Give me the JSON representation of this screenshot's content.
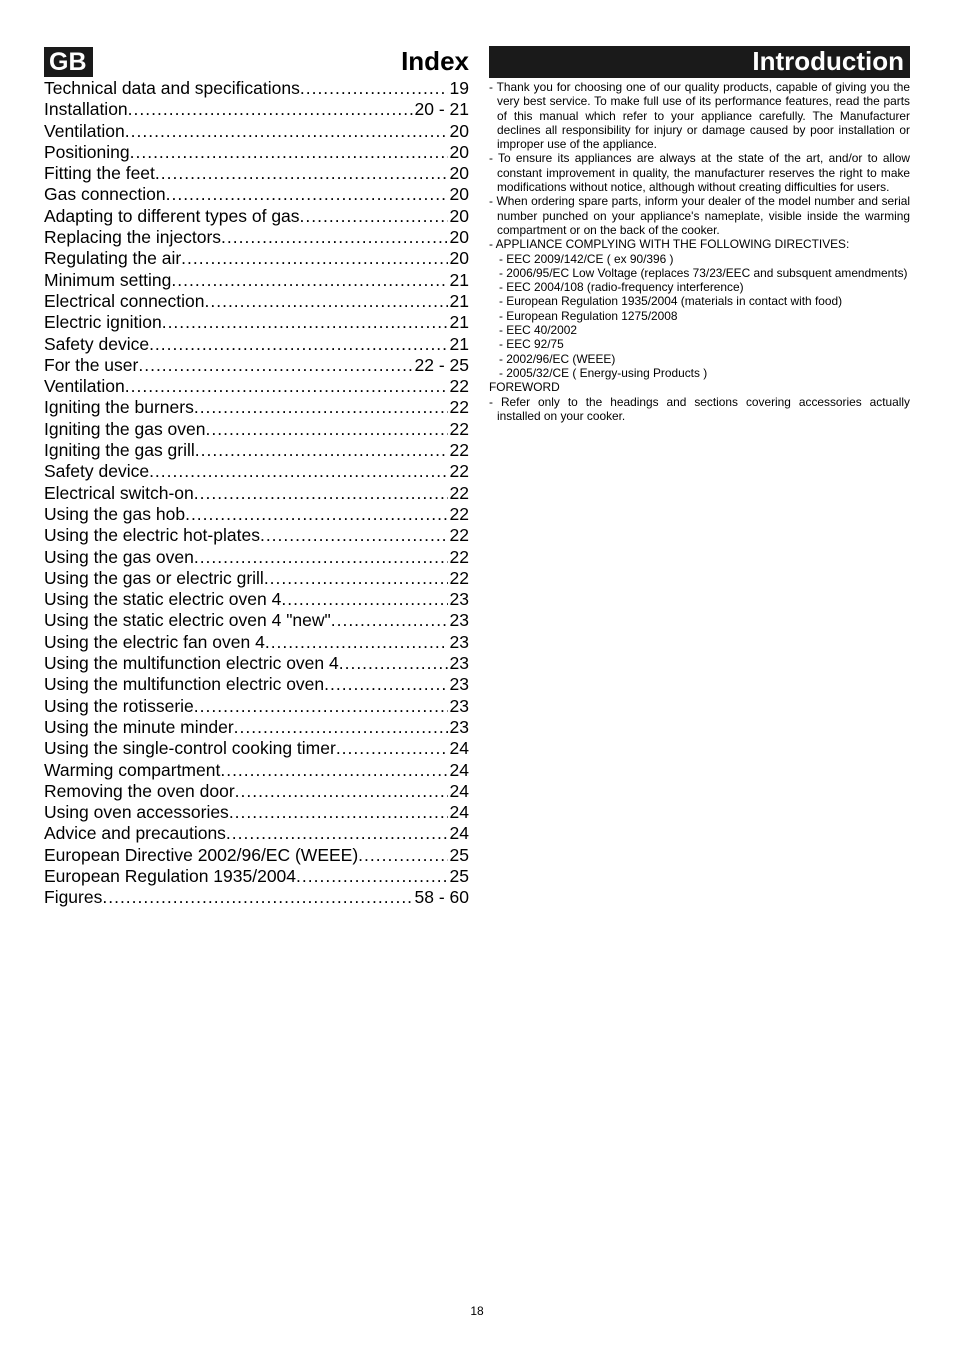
{
  "pageNumber": "18",
  "left": {
    "headerChip": "GB",
    "headerTitle": "Index",
    "toc": [
      {
        "label": "Technical data and  specifications",
        "page": "19"
      },
      {
        "label": "Installation",
        "page": "20 - 21"
      },
      {
        "label": "Ventilation ",
        "page": "20"
      },
      {
        "label": "Positioning",
        "page": "20"
      },
      {
        "label": "Fitting the feet",
        "page": "20"
      },
      {
        "label": "Gas connection",
        "page": "20"
      },
      {
        "label": "Adapting to different types  of gas",
        "page": "20"
      },
      {
        "label": "Replacing the injectors",
        "page": "20"
      },
      {
        "label": "Regulating the air",
        "page": "20"
      },
      {
        "label": "Minimum setting",
        "page": "21"
      },
      {
        "label": "Electrical connection",
        "page": "21"
      },
      {
        "label": "Electric ignition",
        "page": "21"
      },
      {
        "label": "Safety device",
        "page": "21"
      },
      {
        "label": "For the user",
        "page": "22 - 25"
      },
      {
        "label": "Ventilation",
        "page": "22"
      },
      {
        "label": "Igniting the burners",
        "page": " 22"
      },
      {
        "label": "Igniting the gas oven",
        "page": " 22"
      },
      {
        "label": "Igniting the gas grill",
        "page": "22"
      },
      {
        "label": "Safety device",
        "page": "22"
      },
      {
        "label": "Electrical switch-on",
        "page": "22"
      },
      {
        "label": "Using the gas hob",
        "page": "22"
      },
      {
        "label": "Using the electric hot-plates",
        "page": "22"
      },
      {
        "label": "Using the gas oven",
        "page": "22"
      },
      {
        "label": "Using the gas or electric grill",
        "page": "22"
      },
      {
        "label": "Using the static electric oven 4",
        "page": "23"
      },
      {
        "label": "Using the static electric oven 4 \"new\"",
        "page": "23"
      },
      {
        "label": "Using the electric fan oven 4",
        "page": "23"
      },
      {
        "label": "Using the multifunction electric oven 4",
        "page": "23"
      },
      {
        "label": "Using the multifunction  electric oven",
        "page": "23"
      },
      {
        "label": "Using the rotisserie",
        "page": "23"
      },
      {
        "label": "Using the minute minder",
        "page": "23"
      },
      {
        "label": "Using the single-control cooking timer",
        "page": "24"
      },
      {
        "label": "Warming compartment",
        "page": "24"
      },
      {
        "label": "Removing the oven door",
        "page": "24"
      },
      {
        "label": "Using oven accessories",
        "page": "24"
      },
      {
        "label": "Advice and precautions",
        "page": "24"
      },
      {
        "label": "European Directive 2002/96/EC (WEEE)",
        "page": "25"
      },
      {
        "label": "European Regulation 1935/2004",
        "page": "25"
      },
      {
        "label": "Figures",
        "page": "58 - 60"
      }
    ]
  },
  "right": {
    "headerTitle": "Introduction",
    "para1": "- Thank you for choosing one of our quality products, capable of giving you the very best service.  To make full use of its performance features, read the parts of this manual which refer to your appliance carefully.  The Manufacturer declines all responsibility for injury or damage caused by poor installation or improper use of the appliance.",
    "para2": "- To ensure its appliances are always at the state of the art, and/or to allow constant improvement in quality, the manufacturer reserves the right to make modifications without notice, although without creating difficulties for users.",
    "para3": "- When ordering spare parts, inform your dealer of the model number and serial number punched on your appliance's nameplate, visible inside the warming compartment or on the back of the cooker.",
    "complyHead": "- APPLIANCE COMPLYING WITH THE FOLLOWING DIRECTIVES:",
    "directives": [
      "- EEC 2009/142/CE  ( ex 90/396 )",
      "- 2006/95/EC Low Voltage (replaces 73/23/EEC and subsquent amendments)",
      "- EEC 2004/108 (radio-frequency interference)",
      "- European Regulation 1935/2004 (materials in contact with food)",
      "- European Regulation 1275/2008",
      "- EEC 40/2002",
      "- EEC 92/75",
      "- 2002/96/EC (WEEE)",
      "- 2005/32/CE ( Energy-using Products )"
    ],
    "forewordHead": "FOREWORD",
    "foreword": "- Refer only to the headings and sections covering accessories actually installed on your cooker."
  }
}
